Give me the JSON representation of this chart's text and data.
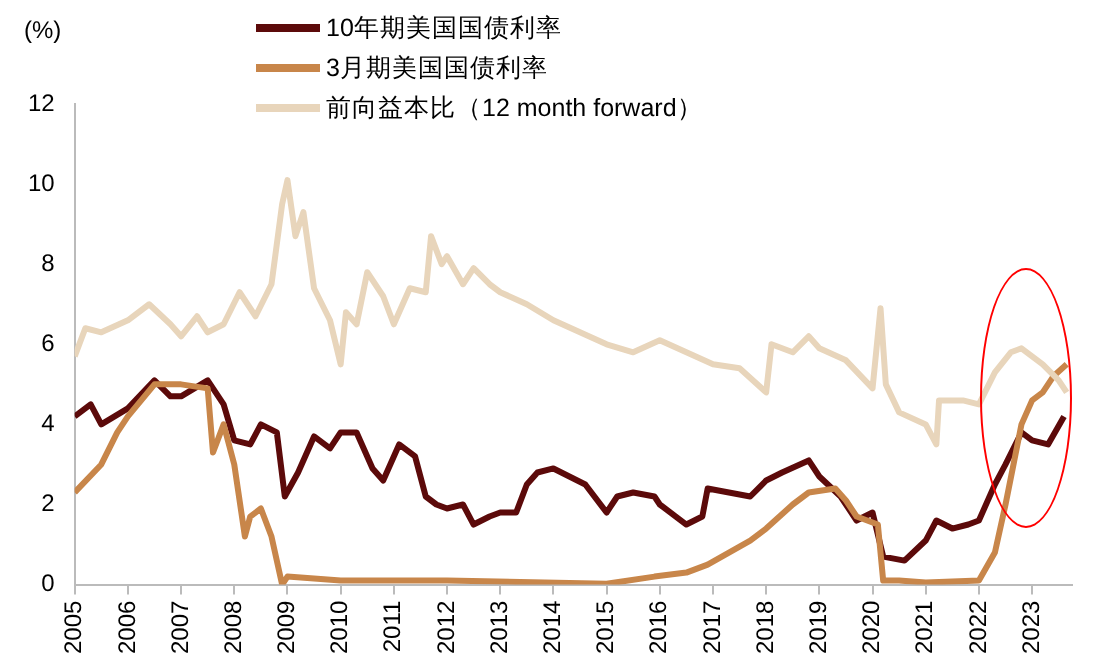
{
  "chart_data": {
    "type": "line",
    "ylabel": "(%)",
    "legend": "top",
    "grid": false,
    "marker": "none",
    "line_style": "solid",
    "xlim": [
      2005,
      2023.75
    ],
    "xticks": [
      2005,
      2006,
      2007,
      2008,
      2009,
      2010,
      2011,
      2012,
      2013,
      2014,
      2015,
      2016,
      2017,
      2018,
      2019,
      2020,
      2021,
      2022,
      2023
    ],
    "ylim": [
      0,
      12
    ],
    "yticks": [
      0,
      2,
      4,
      6,
      8,
      10,
      12
    ],
    "series": [
      {
        "name": "10年期美国国债利率",
        "color": "#5c0a0a",
        "x": [
          2005,
          2005.3,
          2005.5,
          2006,
          2006.5,
          2006.8,
          2007,
          2007.5,
          2007.8,
          2008,
          2008.3,
          2008.5,
          2008.8,
          2008.95,
          2009.2,
          2009.5,
          2009.8,
          2010,
          2010.3,
          2010.6,
          2010.8,
          2011.1,
          2011.4,
          2011.6,
          2011.8,
          2012,
          2012.3,
          2012.5,
          2012.8,
          2013,
          2013.3,
          2013.5,
          2013.7,
          2014,
          2014.3,
          2014.6,
          2015,
          2015.2,
          2015.5,
          2015.9,
          2016,
          2016.5,
          2016.8,
          2016.9,
          2017.3,
          2017.7,
          2018,
          2018.3,
          2018.8,
          2019,
          2019.4,
          2019.7,
          2020,
          2020.2,
          2020.6,
          2021,
          2021.2,
          2021.5,
          2021.8,
          2022,
          2022.3,
          2022.5,
          2022.8,
          2023,
          2023.3,
          2023.6
        ],
        "values": [
          4.2,
          4.5,
          4.0,
          4.4,
          5.1,
          4.7,
          4.7,
          5.1,
          4.5,
          3.6,
          3.5,
          4.0,
          3.8,
          2.2,
          2.8,
          3.7,
          3.4,
          3.8,
          3.8,
          2.9,
          2.6,
          3.5,
          3.2,
          2.2,
          2.0,
          1.9,
          2.0,
          1.5,
          1.7,
          1.8,
          1.8,
          2.5,
          2.8,
          2.9,
          2.7,
          2.5,
          1.8,
          2.2,
          2.3,
          2.2,
          2.0,
          1.5,
          1.7,
          2.4,
          2.3,
          2.2,
          2.6,
          2.8,
          3.1,
          2.7,
          2.2,
          1.6,
          1.8,
          0.7,
          0.6,
          1.1,
          1.6,
          1.4,
          1.5,
          1.6,
          2.5,
          3.0,
          3.8,
          3.6,
          3.5,
          4.2
        ]
      },
      {
        "name": "3月期美国国债利率",
        "color": "#c8864a",
        "x": [
          2005,
          2005.5,
          2005.8,
          2006,
          2006.5,
          2007,
          2007.5,
          2007.6,
          2007.8,
          2008,
          2008.2,
          2008.3,
          2008.5,
          2008.7,
          2008.9,
          2009,
          2010,
          2012,
          2015,
          2015.9,
          2016.5,
          2016.9,
          2017.3,
          2017.7,
          2018,
          2018.5,
          2018.8,
          2019.3,
          2019.5,
          2019.7,
          2020.1,
          2020.2,
          2020.5,
          2021,
          2022,
          2022.3,
          2022.5,
          2022.8,
          2023,
          2023.2,
          2023.4,
          2023.65
        ],
        "values": [
          2.3,
          3.0,
          3.8,
          4.2,
          5.0,
          5.0,
          4.9,
          3.3,
          4.0,
          3.0,
          1.2,
          1.7,
          1.9,
          1.2,
          0.0,
          0.2,
          0.1,
          0.1,
          0.02,
          0.2,
          0.3,
          0.5,
          0.8,
          1.1,
          1.4,
          2.0,
          2.3,
          2.4,
          2.1,
          1.7,
          1.5,
          0.1,
          0.1,
          0.05,
          0.1,
          0.8,
          2.0,
          4.0,
          4.6,
          4.8,
          5.2,
          5.5
        ]
      },
      {
        "name": "前向益本比（12 month forward）",
        "color": "#e8d5bb",
        "x": [
          2005,
          2005.2,
          2005.5,
          2006,
          2006.4,
          2006.8,
          2007,
          2007.3,
          2007.5,
          2007.8,
          2008.1,
          2008.4,
          2008.7,
          2008.9,
          2009,
          2009.15,
          2009.3,
          2009.5,
          2009.8,
          2010,
          2010.1,
          2010.3,
          2010.5,
          2010.8,
          2011,
          2011.3,
          2011.6,
          2011.7,
          2011.9,
          2012,
          2012.3,
          2012.5,
          2012.8,
          2013,
          2013.5,
          2014,
          2014.5,
          2015,
          2015.5,
          2016,
          2016.5,
          2017,
          2017.5,
          2018,
          2018.1,
          2018.5,
          2018.8,
          2019,
          2019.5,
          2020,
          2020.15,
          2020.25,
          2020.5,
          2021,
          2021.2,
          2021.25,
          2021.7,
          2022,
          2022.3,
          2022.6,
          2022.8,
          2023,
          2023.2,
          2023.5,
          2023.65
        ],
        "values": [
          5.7,
          6.4,
          6.3,
          6.6,
          7.0,
          6.5,
          6.2,
          6.7,
          6.3,
          6.5,
          7.3,
          6.7,
          7.5,
          9.5,
          10.1,
          8.7,
          9.3,
          7.4,
          6.6,
          5.5,
          6.8,
          6.5,
          7.8,
          7.2,
          6.5,
          7.4,
          7.3,
          8.7,
          8.0,
          8.2,
          7.5,
          7.9,
          7.5,
          7.3,
          7.0,
          6.6,
          6.3,
          6.0,
          5.8,
          6.1,
          5.8,
          5.5,
          5.4,
          4.8,
          6.0,
          5.8,
          6.2,
          5.9,
          5.6,
          4.9,
          6.9,
          5.0,
          4.3,
          4.0,
          3.5,
          4.6,
          4.6,
          4.5,
          5.3,
          5.8,
          5.9,
          5.7,
          5.5,
          5.1,
          4.8
        ]
      }
    ]
  }
}
